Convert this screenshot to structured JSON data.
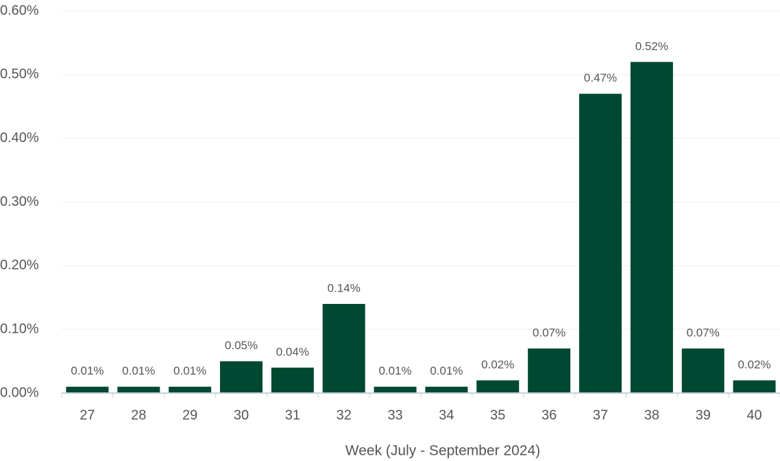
{
  "chart_data": {
    "type": "bar",
    "x_label": "Week (July - September 2024)",
    "categories": [
      "27",
      "28",
      "29",
      "30",
      "31",
      "32",
      "33",
      "34",
      "35",
      "36",
      "37",
      "38",
      "39",
      "40"
    ],
    "values": [
      0.01,
      0.01,
      0.01,
      0.05,
      0.04,
      0.14,
      0.01,
      0.01,
      0.02,
      0.07,
      0.47,
      0.52,
      0.07,
      0.02
    ],
    "value_labels": [
      "0.01%",
      "0.01%",
      "0.01%",
      "0.05%",
      "0.04%",
      "0.14%",
      "0.01%",
      "0.01%",
      "0.02%",
      "0.07%",
      "0.47%",
      "0.52%",
      "0.07%",
      "0.02%"
    ],
    "color": "#004831",
    "ylim": [
      0,
      0.6
    ],
    "yticks": [
      {
        "value": 0,
        "label": "0.00%"
      },
      {
        "value": 0.1,
        "label": "0.10%"
      },
      {
        "value": 0.2,
        "label": "0.20%"
      },
      {
        "value": 0.3,
        "label": "0.30%"
      },
      {
        "value": 0.4,
        "label": "0.40%"
      },
      {
        "value": 0.5,
        "label": "0.50%"
      },
      {
        "value": 0.6,
        "label": "0.60%"
      }
    ],
    "grid": true
  }
}
